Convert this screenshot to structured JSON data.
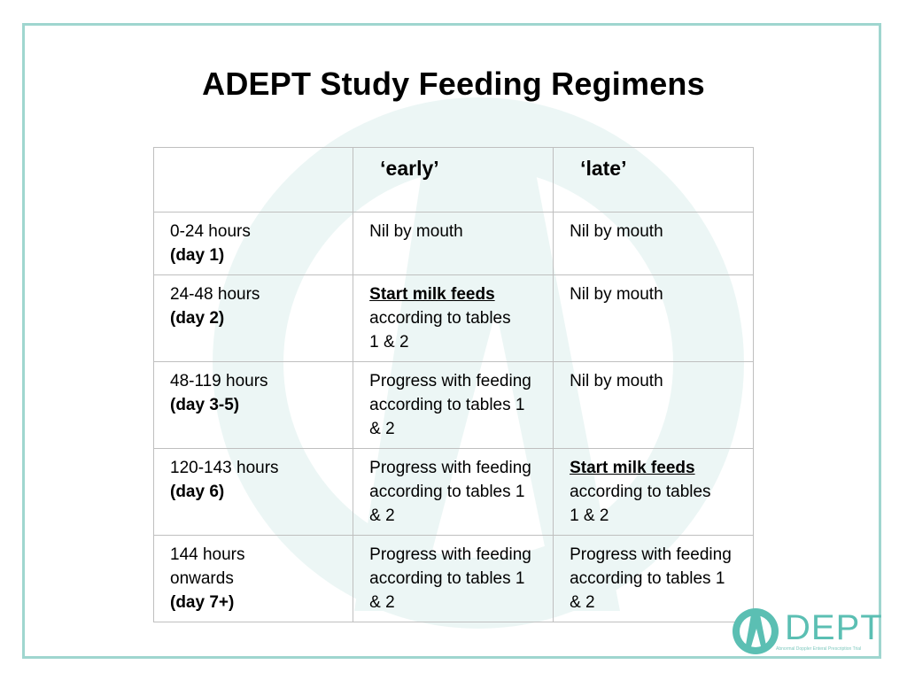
{
  "title": "ADEPT Study Feeding Regimens",
  "table": {
    "headers": [
      "",
      "‘early’",
      "‘late’"
    ],
    "rows": [
      {
        "time": "0-24 hours",
        "day": "(day 1)",
        "early": {
          "emph": "",
          "text": "Nil by mouth"
        },
        "late": {
          "emph": "",
          "text": "Nil by mouth"
        }
      },
      {
        "time": "24-48 hours",
        "day": "(day 2)",
        "early": {
          "emph": "Start milk feeds",
          "text": "according to tables 1 & 2"
        },
        "late": {
          "emph": "",
          "text": "Nil by mouth"
        }
      },
      {
        "time": "48-119 hours",
        "day": "(day 3-5)",
        "early": {
          "emph": "",
          "text": "Progress with feeding according to tables 1 & 2"
        },
        "late": {
          "emph": "",
          "text": "Nil by mouth"
        }
      },
      {
        "time": "120-143 hours",
        "day": "(day 6)",
        "early": {
          "emph": "",
          "text": "Progress with feeding according to tables 1 & 2"
        },
        "late": {
          "emph": "Start milk feeds",
          "text": "according to tables 1 & 2"
        }
      },
      {
        "time": "144 hours onwards",
        "day": "(day 7+)",
        "early": {
          "emph": "",
          "text": "Progress with feeding according to tables 1 & 2"
        },
        "late": {
          "emph": "",
          "text": "Progress with feeding according to tables 1 & 2"
        }
      }
    ]
  },
  "logo": {
    "text": "DEPT",
    "tagline": "Abnormal Doppler Enteral Prescription Trial"
  },
  "colors": {
    "frame": "#9fd6cf",
    "brand": "#5bbfb3"
  },
  "icons": {
    "logo_mark": "adept-logo-icon",
    "watermark": "adept-watermark-icon"
  }
}
